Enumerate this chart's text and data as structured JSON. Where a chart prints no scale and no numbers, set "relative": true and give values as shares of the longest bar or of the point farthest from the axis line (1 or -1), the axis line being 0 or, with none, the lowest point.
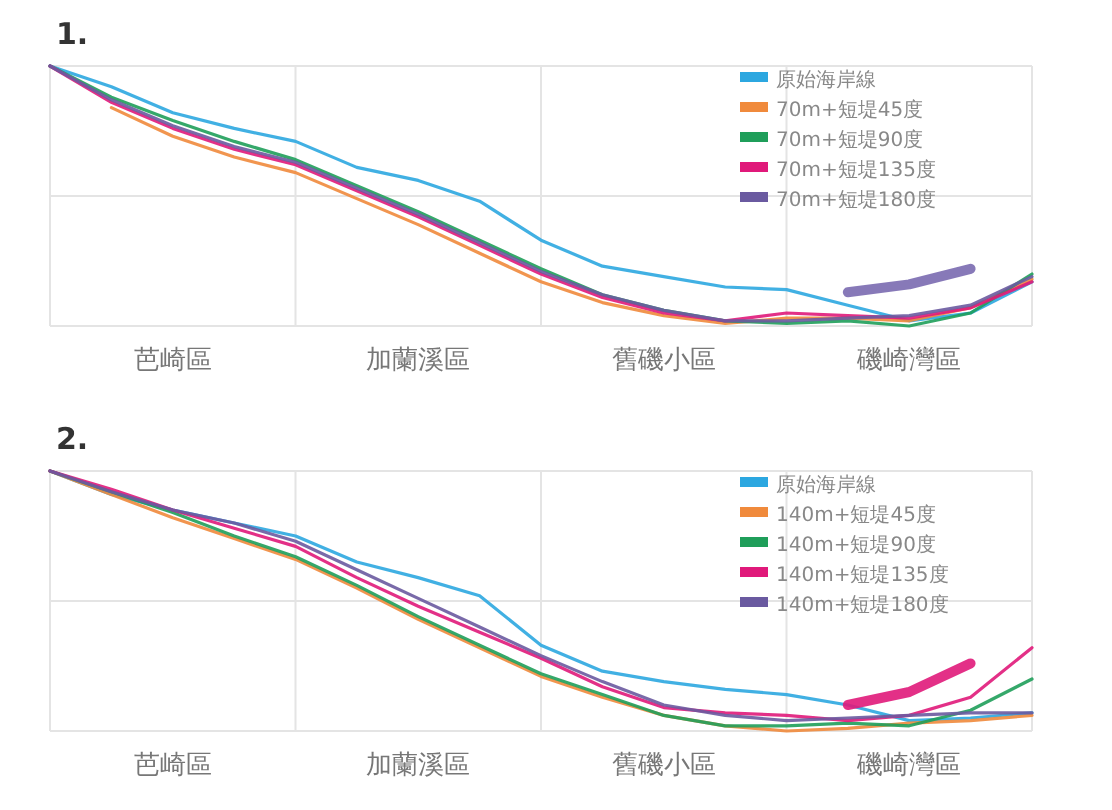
{
  "chart_data": [
    {
      "type": "line",
      "title": "1.",
      "relative": true,
      "grid": true,
      "legend": "top right",
      "categories": [
        null,
        null,
        "芭崎區",
        null,
        null,
        null,
        "加蘭溪區",
        null,
        null,
        null,
        "舊磯小區",
        null,
        null,
        null,
        "磯崎灣區",
        null,
        null
      ],
      "series": [
        {
          "name": "原始海岸線",
          "color": "#2ca7e0",
          "values": [
            1,
            0.92,
            0.82,
            0.76,
            0.71,
            0.61,
            0.56,
            0.48,
            0.33,
            0.23,
            0.19,
            0.15,
            0.14,
            0.08,
            0.02,
            0.05,
            0.17
          ]
        },
        {
          "name": "70m+短堤45度",
          "color": "#f08a3c",
          "values": [
            null,
            0.84,
            0.73,
            0.65,
            0.59,
            0.49,
            0.39,
            0.28,
            0.17,
            0.09,
            0.04,
            0.01,
            0.03,
            0.03,
            0.02,
            0.07,
            0.18
          ]
        },
        {
          "name": "70m+短堤90度",
          "color": "#1f9e5a",
          "values": [
            1,
            0.88,
            0.79,
            0.71,
            0.64,
            0.54,
            0.44,
            0.33,
            0.22,
            0.12,
            0.06,
            0.02,
            0.01,
            0.02,
            0,
            0.05,
            0.2
          ]
        },
        {
          "name": "70m+短堤135度",
          "color": "#e0197a",
          "values": [
            1,
            0.86,
            0.76,
            0.68,
            0.62,
            0.52,
            0.42,
            0.31,
            0.2,
            0.11,
            0.05,
            0.02,
            0.05,
            0.04,
            0.03,
            0.07,
            0.17
          ]
        },
        {
          "name": "70m+短堤180度",
          "color": "#6a5aa0",
          "values": [
            1,
            0.87,
            0.77,
            0.69,
            0.63,
            0.53,
            0.43,
            0.32,
            0.21,
            0.12,
            0.06,
            0.02,
            0.02,
            0.03,
            0.04,
            0.08,
            0.19
          ]
        },
        {
          "color": "#7a6ab0",
          "values": [
            null,
            null,
            null,
            null,
            null,
            null,
            null,
            null,
            null,
            null,
            null,
            null,
            null,
            0.13,
            0.16,
            0.22,
            null
          ]
        }
      ]
    },
    {
      "type": "line",
      "title": "2.",
      "relative": true,
      "grid": true,
      "legend": "top right",
      "categories": [
        null,
        null,
        "芭崎區",
        null,
        null,
        null,
        "加蘭溪區",
        null,
        null,
        null,
        "舊磯小區",
        null,
        null,
        null,
        "磯崎灣區",
        null,
        null
      ],
      "series": [
        {
          "name": "原始海岸線",
          "color": "#2ca7e0",
          "values": [
            1,
            0.91,
            0.85,
            0.8,
            0.75,
            0.65,
            0.59,
            0.52,
            0.33,
            0.23,
            0.19,
            0.16,
            0.14,
            0.1,
            0.04,
            0.05,
            0.07
          ]
        },
        {
          "name": "140m+短堤45度",
          "color": "#f08a3c",
          "values": [
            1,
            0.91,
            0.82,
            0.74,
            0.66,
            0.55,
            0.43,
            0.32,
            0.21,
            0.13,
            0.06,
            0.02,
            0,
            0.01,
            0.03,
            0.04,
            0.06
          ]
        },
        {
          "name": "140m+短堤90度",
          "color": "#1f9e5a",
          "values": [
            1,
            0.92,
            0.84,
            0.75,
            0.67,
            0.56,
            0.44,
            0.33,
            0.22,
            0.14,
            0.06,
            0.02,
            0.02,
            0.03,
            0.02,
            0.08,
            0.2
          ]
        },
        {
          "name": "140m+短堤135度",
          "color": "#e0197a",
          "values": [
            1,
            0.93,
            0.85,
            0.78,
            0.71,
            0.59,
            0.48,
            0.38,
            0.28,
            0.17,
            0.09,
            0.07,
            0.06,
            0.04,
            0.06,
            0.13,
            0.32
          ]
        },
        {
          "name": "140m+短堤180度",
          "color": "#6a5aa0",
          "values": [
            1,
            0.92,
            0.85,
            0.8,
            0.73,
            0.62,
            0.51,
            0.4,
            0.29,
            0.19,
            0.1,
            0.06,
            0.04,
            0.05,
            0.06,
            0.07,
            0.07
          ]
        },
        {
          "color": "#e0197a",
          "values": [
            null,
            null,
            null,
            null,
            null,
            null,
            null,
            null,
            null,
            null,
            null,
            null,
            null,
            0.1,
            0.15,
            0.26,
            null
          ]
        }
      ]
    }
  ]
}
